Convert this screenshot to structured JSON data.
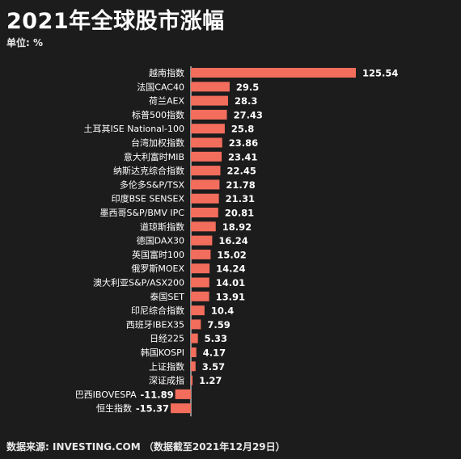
{
  "title": "2021年全球股市涨幅",
  "unit_label": "单位: %",
  "source": "数据来源: INVESTING.COM （数据截至2021年12月29日）",
  "colors": {
    "background": "#1c1c1c",
    "bar": "#f36d5c",
    "axis": "#d8d8d8",
    "text": "#ffffff"
  },
  "chart_data": {
    "type": "bar",
    "orientation": "horizontal",
    "title": "2021年全球股市涨幅",
    "unit": "%",
    "xlabel": "",
    "ylabel": "",
    "grid": false,
    "xlim": [
      -16,
      126
    ],
    "categories": [
      "越南指数",
      "法国CAC40",
      "荷兰AEX",
      "标普500指数",
      "土耳其ISE National-100",
      "台湾加权指数",
      "意大利富时MIB",
      "纳斯达克综合指数",
      "多伦多S&P/TSX",
      "印度BSE SENSEX",
      "墨西哥S&P/BMV IPC",
      "道琼斯指数",
      "德国DAX30",
      "英国富时100",
      "俄罗斯MOEX",
      "澳大利亚S&P/ASX200",
      "泰国SET",
      "印尼综合指数",
      "西班牙IBEX35",
      "日经225",
      "韩国KOSPI",
      "上证指数",
      "深证成指",
      "巴西IBOVESPA",
      "恒生指数"
    ],
    "values": [
      125.54,
      29.5,
      28.3,
      27.43,
      25.8,
      23.86,
      23.41,
      22.45,
      21.78,
      21.31,
      20.81,
      18.92,
      16.24,
      15.02,
      14.24,
      14.01,
      13.91,
      10.4,
      7.59,
      5.33,
      4.17,
      3.57,
      1.27,
      -11.89,
      -15.37
    ],
    "value_labels": [
      "125.54",
      "29.5",
      "28.3",
      "27.43",
      "25.8",
      "23.86",
      "23.41",
      "22.45",
      "21.78",
      "21.31",
      "20.81",
      "18.92",
      "16.24",
      "15.02",
      "14.24",
      "14.01",
      "13.91",
      "10.4",
      "7.59",
      "5.33",
      "4.17",
      "3.57",
      "1.27",
      "-11.89",
      "-15.37"
    ]
  }
}
